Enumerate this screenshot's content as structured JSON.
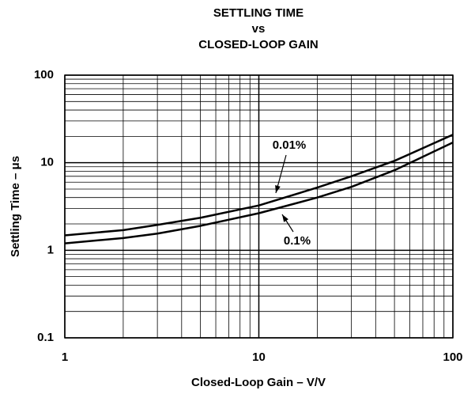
{
  "chart_data": {
    "type": "line",
    "title": [
      "SETTLING TIME",
      "vs",
      "CLOSED-LOOP GAIN"
    ],
    "x_label": "Closed-Loop Gain – V/V",
    "y_label": "Settling Time – μs",
    "x": [
      1,
      2,
      3,
      5,
      10,
      20,
      30,
      50,
      100
    ],
    "series": [
      {
        "name": "0.01%",
        "color": "#000000",
        "values": [
          1.48,
          1.7,
          1.95,
          2.35,
          3.25,
          5.2,
          7.0,
          10.5,
          20.9
        ]
      },
      {
        "name": "0.1%",
        "color": "#000000",
        "values": [
          1.2,
          1.38,
          1.55,
          1.9,
          2.65,
          4.0,
          5.3,
          8.2,
          17
        ]
      }
    ],
    "xlim": [
      1,
      100
    ],
    "xticks": [
      1,
      10,
      100
    ],
    "ylim": [
      0.1,
      100
    ],
    "yticks": [
      0.1,
      1,
      10,
      100
    ],
    "x_log": true,
    "y_log": true,
    "grid": true,
    "minor_grid": true
  }
}
